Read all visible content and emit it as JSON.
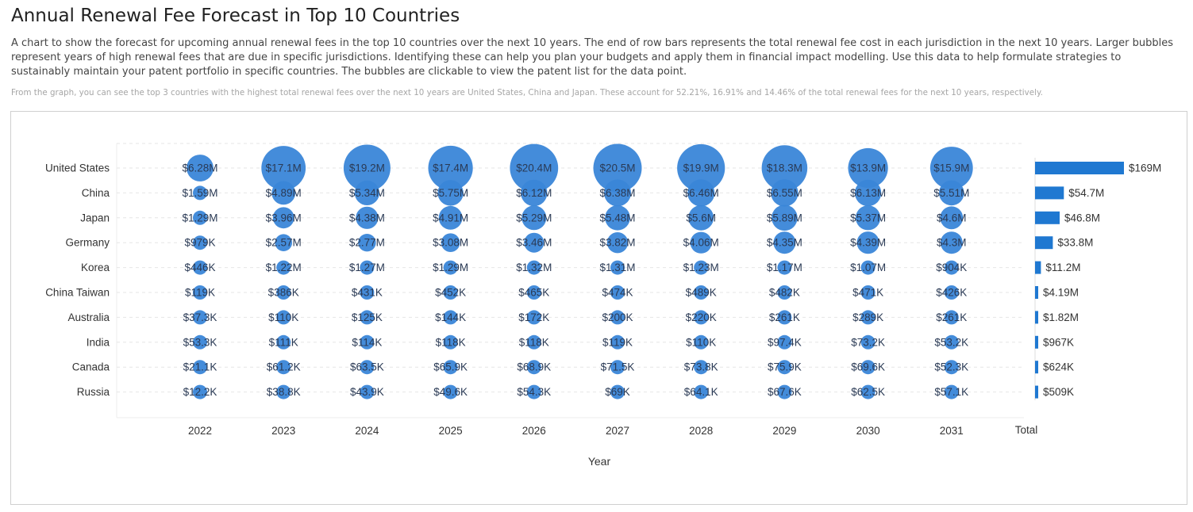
{
  "header": {
    "title": "Annual Renewal Fee Forecast in Top 10 Countries",
    "description": "A chart to show the forecast for upcoming annual renewal fees in the top 10 countries over the next 10 years. The end of row bars represents the total renewal fee cost in each jurisdiction in the next 10 years. Larger bubbles represent years of high renewal fees that are due in specific jurisdictions. Identifying these can help you plan your budgets and apply them in financial impact modelling. Use this data to help formulate strategies to sustainably maintain your patent portfolio in specific countries. The bubbles are clickable to view the patent list for the data point.",
    "insight": "From the graph, you can see the top 3 countries with the highest total renewal fees over the next 10 years are United States, China and Japan. These account for 52.21%, 16.91% and 14.46% of the total renewal fees for the next 10 years, respectively."
  },
  "colors": {
    "bubble": "#3a86d8",
    "bar": "#1f78d1",
    "grid": "#e6e6e6"
  },
  "chart_data": {
    "type": "bubble",
    "xlabel": "Year",
    "total_label": "Total",
    "years": [
      "2022",
      "2023",
      "2024",
      "2025",
      "2026",
      "2027",
      "2028",
      "2029",
      "2030",
      "2031"
    ],
    "countries": [
      "United States",
      "China",
      "Japan",
      "Germany",
      "Korea",
      "China Taiwan",
      "Australia",
      "India",
      "Canada",
      "Russia"
    ],
    "values": [
      [
        6280000,
        17100000,
        19200000,
        17400000,
        20400000,
        20500000,
        19900000,
        18300000,
        13900000,
        15900000
      ],
      [
        1590000,
        4890000,
        5340000,
        5750000,
        6120000,
        6380000,
        6460000,
        6550000,
        6130000,
        5510000
      ],
      [
        1290000,
        3960000,
        4380000,
        4910000,
        5290000,
        5480000,
        5600000,
        5890000,
        5370000,
        4600000
      ],
      [
        979000,
        2570000,
        2770000,
        3080000,
        3460000,
        3820000,
        4060000,
        4350000,
        4390000,
        4300000
      ],
      [
        446000,
        1220000,
        1270000,
        1290000,
        1320000,
        1310000,
        1230000,
        1170000,
        1070000,
        904000
      ],
      [
        119000,
        386000,
        431000,
        452000,
        465000,
        474000,
        489000,
        482000,
        471000,
        426000
      ],
      [
        37300,
        110000,
        125000,
        144000,
        172000,
        200000,
        220000,
        261000,
        289000,
        261000
      ],
      [
        53300,
        111000,
        114000,
        118000,
        118000,
        119000,
        110000,
        97400,
        73200,
        53200
      ],
      [
        21100,
        61200,
        63500,
        65900,
        68900,
        71500,
        73800,
        75900,
        69600,
        52300
      ],
      [
        12200,
        38800,
        43900,
        49600,
        54300,
        69000,
        64100,
        67600,
        62500,
        57100
      ]
    ],
    "value_labels": [
      [
        "$6.28M",
        "$17.1M",
        "$19.2M",
        "$17.4M",
        "$20.4M",
        "$20.5M",
        "$19.9M",
        "$18.3M",
        "$13.9M",
        "$15.9M"
      ],
      [
        "$1.59M",
        "$4.89M",
        "$5.34M",
        "$5.75M",
        "$6.12M",
        "$6.38M",
        "$6.46M",
        "$6.55M",
        "$6.13M",
        "$5.51M"
      ],
      [
        "$1.29M",
        "$3.96M",
        "$4.38M",
        "$4.91M",
        "$5.29M",
        "$5.48M",
        "$5.6M",
        "$5.89M",
        "$5.37M",
        "$4.6M"
      ],
      [
        "$979K",
        "$2.57M",
        "$2.77M",
        "$3.08M",
        "$3.46M",
        "$3.82M",
        "$4.06M",
        "$4.35M",
        "$4.39M",
        "$4.3M"
      ],
      [
        "$446K",
        "$1.22M",
        "$1.27M",
        "$1.29M",
        "$1.32M",
        "$1.31M",
        "$1.23M",
        "$1.17M",
        "$1.07M",
        "$904K"
      ],
      [
        "$119K",
        "$386K",
        "$431K",
        "$452K",
        "$465K",
        "$474K",
        "$489K",
        "$482K",
        "$471K",
        "$426K"
      ],
      [
        "$37.3K",
        "$110K",
        "$125K",
        "$144K",
        "$172K",
        "$200K",
        "$220K",
        "$261K",
        "$289K",
        "$261K"
      ],
      [
        "$53.3K",
        "$111K",
        "$114K",
        "$118K",
        "$118K",
        "$119K",
        "$110K",
        "$97.4K",
        "$73.2K",
        "$53.2K"
      ],
      [
        "$21.1K",
        "$61.2K",
        "$63.5K",
        "$65.9K",
        "$68.9K",
        "$71.5K",
        "$73.8K",
        "$75.9K",
        "$69.6K",
        "$52.3K"
      ],
      [
        "$12.2K",
        "$38.8K",
        "$43.9K",
        "$49.6K",
        "$54.3K",
        "$69K",
        "$64.1K",
        "$67.6K",
        "$62.5K",
        "$57.1K"
      ]
    ],
    "totals": [
      169000000,
      54700000,
      46800000,
      33800000,
      11200000,
      4190000,
      1820000,
      967000,
      624000,
      509000
    ],
    "total_labels": [
      "$169M",
      "$54.7M",
      "$46.8M",
      "$33.8M",
      "$11.2M",
      "$4.19M",
      "$1.82M",
      "$967K",
      "$624K",
      "$509K"
    ],
    "grid": true
  }
}
